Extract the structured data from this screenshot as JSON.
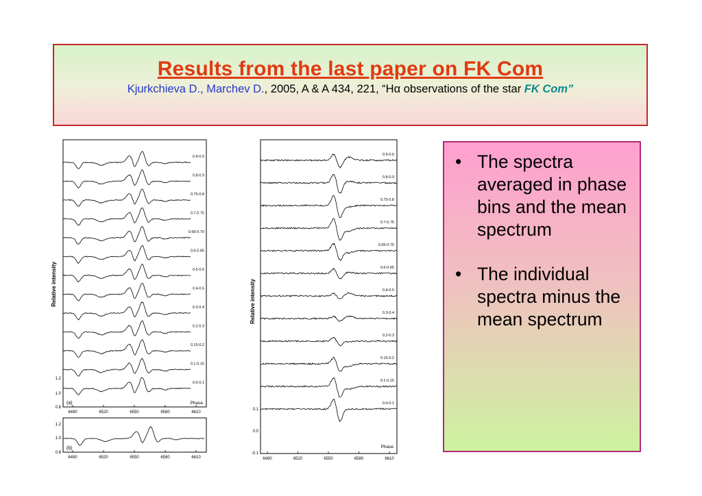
{
  "header": {
    "title": "Results from the last paper on FK Com",
    "authors": "Kjurkchieva D., Marchev D.",
    "citation_mid": ", 2005, A & A 434, 221, “Hα observations of the star ",
    "object": "FK Com”"
  },
  "figure_left": {
    "ylabel": "Relative intensity",
    "xlabel": "Phase",
    "panel_a_label": "(a)",
    "panel_b_label": "(b)",
    "x_ticks": [
      "6490",
      "6520",
      "6550",
      "6580",
      "6610"
    ],
    "y_ticks_a": [
      "1.2",
      "1.0",
      "0.8"
    ],
    "y_ticks_b": [
      "1.2",
      "1.0",
      "0.8"
    ],
    "phase_labels": [
      "0.9-0.0",
      "0.8-0.9",
      "0.75-0.8",
      "0.7-0.75",
      "0.65-0.70",
      "0.6-0.65",
      "0.5-0.6",
      "0.4-0.5",
      "0.3-0.4",
      "0.2-0.3",
      "0.15-0.2",
      "0.1-0.15",
      "0.0-0.1"
    ]
  },
  "figure_right": {
    "ylabel": "Relative intensity",
    "xlabel": "Phase",
    "x_ticks": [
      "6490",
      "6520",
      "6550",
      "6580",
      "6610"
    ],
    "y_ticks": [
      "0.1",
      "0.0",
      "-0.1"
    ],
    "phase_labels": [
      "0.9-0.0",
      "0.8-0.9",
      "0.75-0.8",
      "0.7-0.75",
      "0.65-0.70",
      "0.6-0.65",
      "0.4-0.5",
      "0.3-0.4",
      "0.2-0.3",
      "0.15-0.2",
      "0.1-0.15",
      "0.0-0.1"
    ]
  },
  "bullets": [
    "The spectra averaged in phase bins and the mean spectrum",
    "The individual spectra minus the mean spectrum"
  ],
  "colors": {
    "title": "#e03a12",
    "authors": "#2438c8",
    "object": "#0a8a8a",
    "title_border": "#c0282a",
    "bullet_border": "#b0287a"
  }
}
